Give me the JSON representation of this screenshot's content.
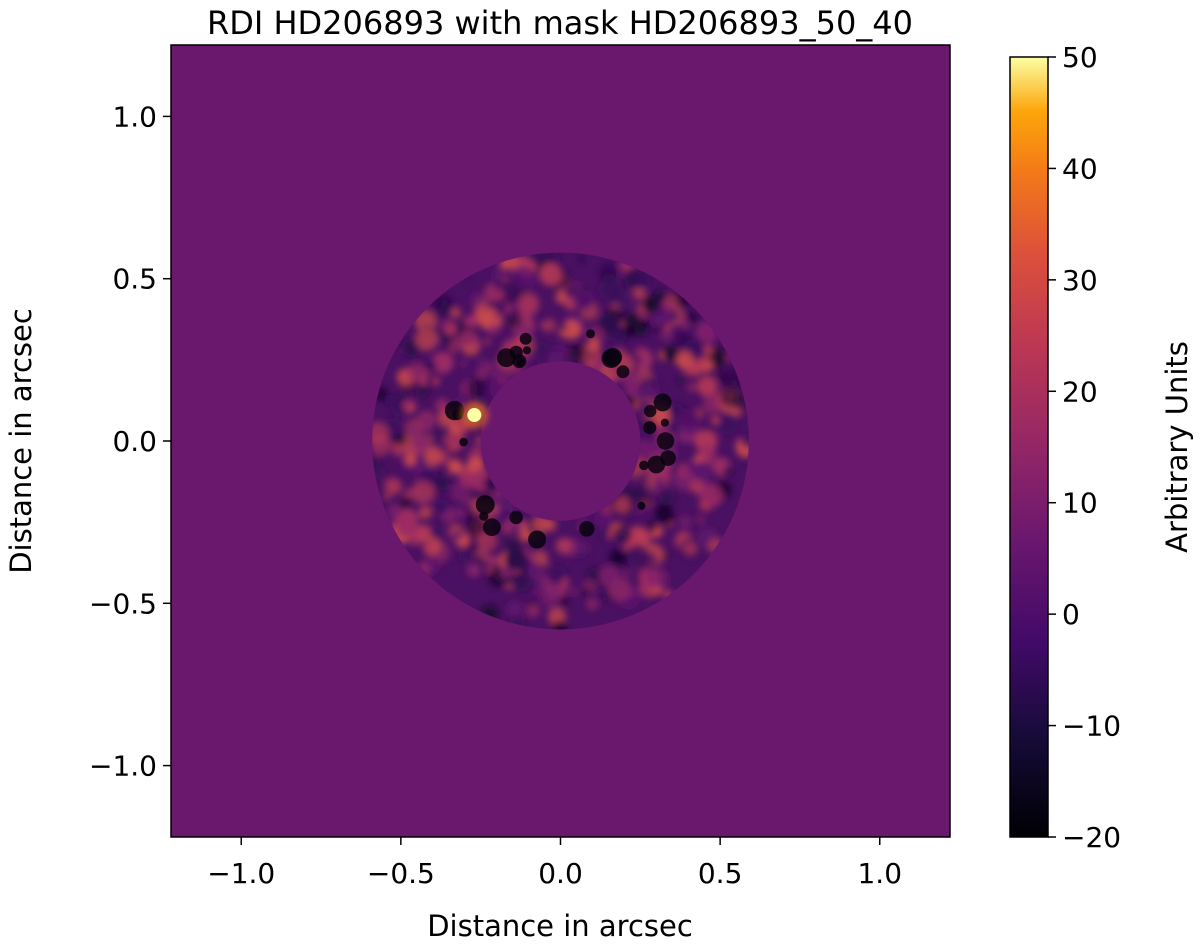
{
  "chart_data": {
    "type": "heatmap",
    "title": "RDI HD206893 with mask HD206893_50_40",
    "xlabel": "Distance in arcsec",
    "ylabel": "Distance in arcsec",
    "xlim": [
      -1.22,
      1.22
    ],
    "ylim": [
      -1.22,
      1.22
    ],
    "xticks": [
      -1.0,
      -0.5,
      0.0,
      0.5,
      1.0
    ],
    "xtick_labels": [
      "−1.0",
      "−0.5",
      "0.0",
      "0.5",
      "1.0"
    ],
    "yticks": [
      1.0,
      0.5,
      0.0,
      -0.5,
      -1.0
    ],
    "ytick_labels": [
      "1.0",
      "0.5",
      "0.0",
      "−0.5",
      "−1.0"
    ],
    "colormap": "inferno",
    "background_value": 0,
    "mask": {
      "center": [
        0.0,
        0.0
      ],
      "inner_radius_arcsec": 0.25,
      "outer_radius_arcsec": 0.59
    },
    "point_source": {
      "x_arcsec": -0.27,
      "y_arcsec": 0.08,
      "value": 50
    },
    "colorbar": {
      "label": "Arbitrary Units",
      "range": [
        -20,
        50
      ],
      "ticks": [
        50,
        40,
        30,
        20,
        10,
        0,
        -10,
        -20
      ],
      "tick_labels": [
        "50",
        "40",
        "30",
        "20",
        "10",
        "0",
        "−10",
        "−20"
      ]
    },
    "grid": false
  }
}
